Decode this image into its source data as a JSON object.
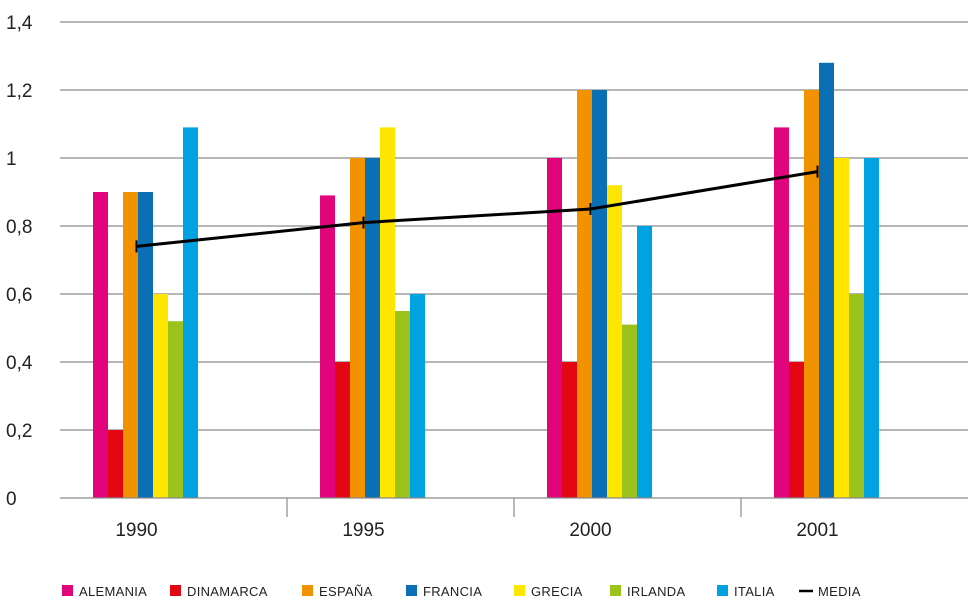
{
  "chart_data": {
    "type": "bar",
    "categories": [
      "1990",
      "1995",
      "2000",
      "2001"
    ],
    "y_ticks": [
      "0",
      "0,2",
      "0,4",
      "0,6",
      "0,8",
      "1",
      "1,2",
      "1,4"
    ],
    "ylim": [
      0,
      1.4
    ],
    "grid": true,
    "legend_position": "bottom",
    "series": [
      {
        "name": "ALEMANIA",
        "color": "#e2047a",
        "values": [
          0.9,
          0.89,
          1.0,
          1.09
        ]
      },
      {
        "name": "DINAMARCA",
        "color": "#e30613",
        "values": [
          0.2,
          0.4,
          0.4,
          0.4
        ]
      },
      {
        "name": "ESPAÑA",
        "color": "#f39200",
        "values": [
          0.9,
          1.0,
          1.2,
          1.2
        ]
      },
      {
        "name": "FRANCIA",
        "color": "#0a6fb5",
        "values": [
          0.9,
          1.0,
          1.2,
          1.28
        ]
      },
      {
        "name": "GRECIA",
        "color": "#ffe600",
        "values": [
          0.6,
          1.09,
          0.92,
          1.0
        ]
      },
      {
        "name": "IRLANDA",
        "color": "#9bc31c",
        "values": [
          0.52,
          0.55,
          0.51,
          0.6
        ]
      },
      {
        "name": "ITALIA",
        "color": "#00a2e2",
        "values": [
          1.09,
          0.6,
          0.8,
          1.0
        ]
      }
    ],
    "line_series": {
      "name": "MEDIA",
      "color": "#000000",
      "values": [
        0.74,
        0.81,
        0.85,
        0.96
      ]
    }
  }
}
